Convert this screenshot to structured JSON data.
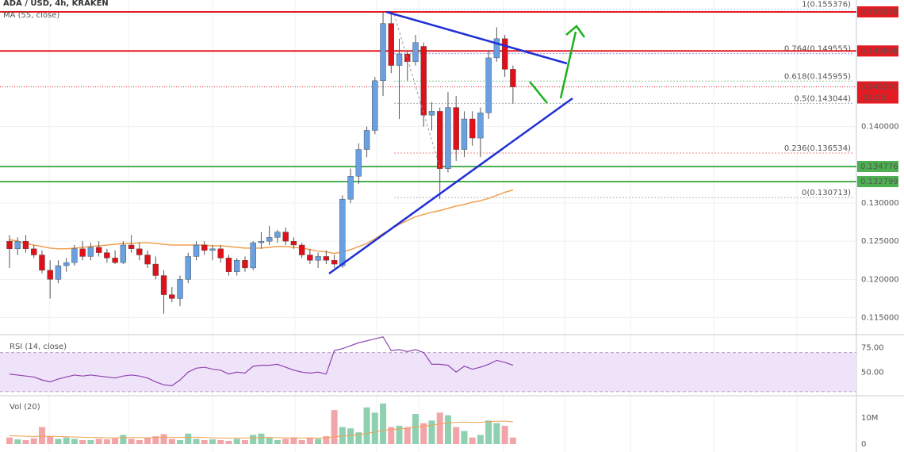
{
  "chart_data": {
    "type": "candlestick",
    "title": "ADA / USD, 4h, KRAKEN",
    "ylim": [
      0.11277,
      0.15657
    ],
    "yticks": [
      {
        "value": 0.115,
        "label": "0.115000"
      },
      {
        "value": 0.12,
        "label": "0.120000"
      },
      {
        "value": 0.125,
        "label": "0.125000"
      },
      {
        "value": 0.13,
        "label": "0.130000"
      },
      {
        "value": 0.14,
        "label": "0.140000"
      }
    ],
    "up_color": "#6a9fe0",
    "down_color": "#e0101a",
    "open": [
      0.125,
      0.124,
      0.125,
      0.124,
      0.1232,
      0.1212,
      0.12,
      0.1218,
      0.1222,
      0.124,
      0.123,
      0.1242,
      0.1235,
      0.1228,
      0.1222,
      0.1245,
      0.124,
      0.1232,
      0.122,
      0.1205,
      0.118,
      0.1175,
      0.12,
      0.123,
      0.1245,
      0.1238,
      0.124,
      0.1228,
      0.121,
      0.1225,
      0.1215,
      0.1248,
      0.125,
      0.1255,
      0.1262,
      0.125,
      0.1245,
      0.1232,
      0.1225,
      0.123,
      0.1225,
      0.1218,
      0.1305,
      0.1335,
      0.137,
      0.1395,
      0.146,
      0.1535,
      0.148,
      0.1495,
      0.1485,
      0.1505,
      0.1415,
      0.142,
      0.1345,
      0.1425,
      0.137,
      0.141,
      0.1385,
      0.1418,
      0.149,
      0.1515,
      0.1475
    ],
    "high": [
      0.1258,
      0.1255,
      0.1258,
      0.1245,
      0.1238,
      0.1225,
      0.1225,
      0.1228,
      0.1245,
      0.125,
      0.1248,
      0.125,
      0.124,
      0.1238,
      0.125,
      0.1258,
      0.1248,
      0.1238,
      0.123,
      0.1212,
      0.119,
      0.1205,
      0.1235,
      0.125,
      0.125,
      0.1245,
      0.1245,
      0.1232,
      0.1228,
      0.123,
      0.125,
      0.1262,
      0.127,
      0.1265,
      0.1268,
      0.1255,
      0.1248,
      0.124,
      0.1235,
      0.1238,
      0.1232,
      0.131,
      0.1345,
      0.1378,
      0.14,
      0.1465,
      0.155,
      0.1548,
      0.1515,
      0.15,
      0.152,
      0.151,
      0.1432,
      0.1425,
      0.1445,
      0.144,
      0.142,
      0.142,
      0.1425,
      0.15,
      0.153,
      0.152,
      0.148
    ],
    "low": [
      0.1215,
      0.1232,
      0.1235,
      0.1228,
      0.1208,
      0.1175,
      0.1195,
      0.121,
      0.1218,
      0.1225,
      0.1225,
      0.123,
      0.1222,
      0.122,
      0.122,
      0.1235,
      0.1225,
      0.1215,
      0.12,
      0.1155,
      0.117,
      0.1165,
      0.1195,
      0.1225,
      0.1232,
      0.1225,
      0.1222,
      0.1205,
      0.1205,
      0.121,
      0.1212,
      0.124,
      0.1245,
      0.1248,
      0.1245,
      0.124,
      0.1228,
      0.122,
      0.1215,
      0.122,
      0.1215,
      0.1215,
      0.13,
      0.1325,
      0.136,
      0.139,
      0.144,
      0.147,
      0.141,
      0.146,
      0.148,
      0.14,
      0.1395,
      0.1305,
      0.134,
      0.1355,
      0.136,
      0.1375,
      0.136,
      0.141,
      0.1485,
      0.1465,
      0.143
    ],
    "close": [
      0.124,
      0.125,
      0.124,
      0.1232,
      0.1212,
      0.12,
      0.1218,
      0.1222,
      0.124,
      0.123,
      0.1242,
      0.1235,
      0.1228,
      0.1222,
      0.1245,
      0.124,
      0.1232,
      0.122,
      0.1205,
      0.118,
      0.1175,
      0.12,
      0.123,
      0.1245,
      0.1238,
      0.124,
      0.1228,
      0.121,
      0.1225,
      0.1215,
      0.1248,
      0.125,
      0.1255,
      0.1262,
      0.125,
      0.1245,
      0.1232,
      0.1225,
      0.123,
      0.1225,
      0.122,
      0.1305,
      0.1335,
      0.137,
      0.1395,
      0.146,
      0.1535,
      0.148,
      0.1495,
      0.1485,
      0.151,
      0.1415,
      0.142,
      0.1345,
      0.1425,
      0.137,
      0.141,
      0.1385,
      0.1418,
      0.149,
      0.1515,
      0.1475,
      0.1452
    ],
    "ma": {
      "name": "MA (55, close)",
      "color": "#f0a050",
      "values": [
        0.1252,
        0.125,
        0.1247,
        0.1245,
        0.1243,
        0.1241,
        0.124,
        0.124,
        0.1241,
        0.1242,
        0.1243,
        0.1244,
        0.1245,
        0.1246,
        0.1247,
        0.1247,
        0.1248,
        0.1248,
        0.1247,
        0.1246,
        0.1245,
        0.1245,
        0.1245,
        0.1245,
        0.1245,
        0.1244,
        0.1244,
        0.1243,
        0.1242,
        0.1241,
        0.1241,
        0.1241,
        0.1242,
        0.1243,
        0.1243,
        0.1242,
        0.1241,
        0.1239,
        0.1237,
        0.1236,
        0.1234,
        0.1236,
        0.1239,
        0.1243,
        0.1247,
        0.1253,
        0.126,
        0.1266,
        0.1272,
        0.1277,
        0.1282,
        0.1285,
        0.1288,
        0.129,
        0.1293,
        0.1296,
        0.1298,
        0.1301,
        0.1303,
        0.1306,
        0.131,
        0.1314,
        0.1317
      ]
    },
    "levels": [
      {
        "value": 0.155018,
        "color": "#e31b23"
      },
      {
        "value": 0.149898,
        "color": "#e31b23"
      },
      {
        "value": 0.134776,
        "color": "#4caf50"
      },
      {
        "value": 0.132799,
        "color": "#4caf50"
      }
    ],
    "current": {
      "value": 0.145201,
      "countdown": "53:23",
      "color": "#e31b23"
    },
    "fib": [
      {
        "label": "1(0.155376)",
        "value": 0.155376,
        "color": "#64b5f6"
      },
      {
        "label": "0.764(0.149555)",
        "value": 0.149555,
        "color": "#2962ff"
      },
      {
        "label": "0.618(0.145955)",
        "value": 0.145955,
        "color": "#43a047"
      },
      {
        "label": "0.5(0.143044)",
        "value": 0.143044,
        "color": "#607d8b"
      },
      {
        "label": "0.236(0.136534)",
        "value": 0.136534,
        "color": "#e53935"
      },
      {
        "label": "0(0.130713)",
        "value": 0.130713,
        "color": "#808080"
      }
    ],
    "rsi": {
      "name": "RSI (14, close)",
      "color": "#8e44ad",
      "ylim": [
        26.7,
        87.5
      ],
      "yticks": [
        {
          "value": 75,
          "label": "75.00"
        },
        {
          "value": 50,
          "label": "50.00"
        }
      ],
      "band": [
        30,
        70
      ],
      "values": [
        48,
        47,
        46,
        45,
        42,
        40,
        43,
        45,
        47,
        46,
        47,
        46,
        45,
        44,
        46,
        47,
        46,
        44,
        40,
        37,
        36,
        42,
        50,
        54,
        55,
        53,
        52,
        48,
        50,
        49,
        56,
        57,
        57,
        58,
        55,
        52,
        50,
        49,
        50,
        48,
        72,
        74,
        77,
        80,
        82,
        84,
        86,
        72,
        73,
        71,
        73,
        70,
        58,
        58,
        57,
        50,
        56,
        53,
        55,
        58,
        62,
        60,
        57
      ]
    },
    "volume": {
      "name": "Vol (20)",
      "up_color": "#8fd0b0",
      "down_color": "#f2a5a8",
      "ma_color": "#f0a050",
      "ylim": [
        -3030000,
        18180000
      ],
      "yticks": [
        {
          "value": 10000000,
          "label": "10M"
        },
        0
      ],
      "values": [
        2500000,
        1800000,
        1500000,
        2200000,
        6500000,
        3000000,
        2000000,
        2500000,
        2000000,
        1500000,
        1500000,
        2000000,
        1800000,
        2200000,
        3500000,
        2000000,
        1500000,
        2500000,
        3000000,
        3800000,
        2000000,
        1500000,
        4000000,
        2000000,
        1500000,
        1800000,
        1500000,
        1200000,
        2000000,
        1500000,
        3500000,
        4000000,
        2500000,
        1500000,
        2000000,
        2500000,
        1500000,
        2500000,
        2000000,
        3000000,
        13000000,
        6500000,
        6000000,
        4500000,
        14000000,
        12000000,
        15500000,
        6500000,
        7000000,
        6500000,
        11500000,
        8000000,
        9000000,
        12000000,
        11000000,
        6500000,
        5000000,
        2500000,
        3500000,
        9000000,
        8000000,
        7000000,
        2500000
      ],
      "ma": [
        3200000,
        3100000,
        3000000,
        2900000,
        3000000,
        3000000,
        2900000,
        2800000,
        2700000,
        2600000,
        2500000,
        2500000,
        2400000,
        2400000,
        2500000,
        2500000,
        2500000,
        2400000,
        2500000,
        2600000,
        2600000,
        2500000,
        2600000,
        2600000,
        2500000,
        2400000,
        2300000,
        2300000,
        2300000,
        2300000,
        2400000,
        2500000,
        2500000,
        2400000,
        2400000,
        2400000,
        2300000,
        2300000,
        2300000,
        2300000,
        2800000,
        3100000,
        3300000,
        3500000,
        4100000,
        4600000,
        5300000,
        5500000,
        5800000,
        6000000,
        6500000,
        6800000,
        7200000,
        7700000,
        8100000,
        8300000,
        8400000,
        8300000,
        8300000,
        8600000,
        8700000,
        8800000,
        8500000
      ]
    }
  }
}
